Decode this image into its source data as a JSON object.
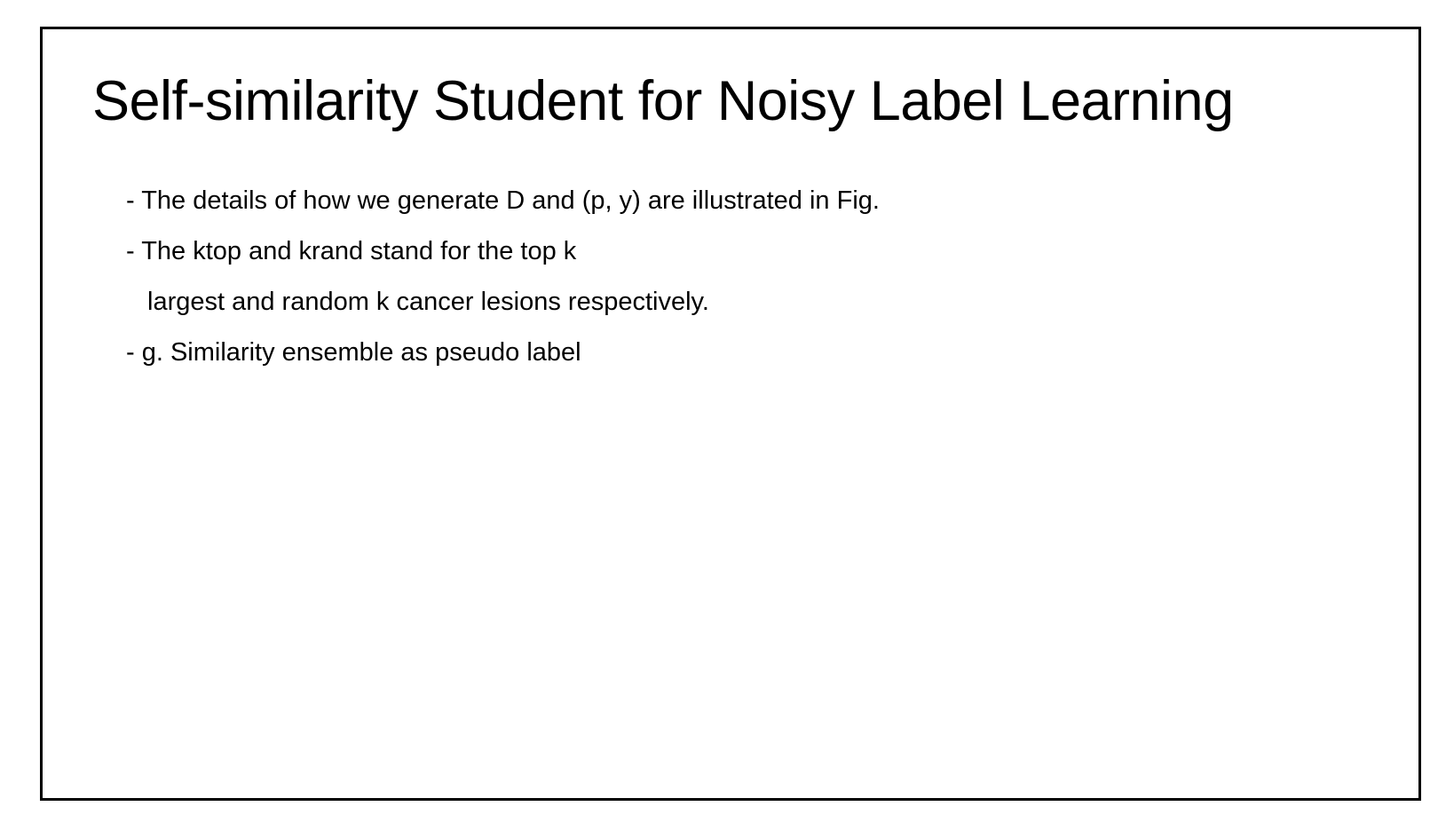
{
  "slide": {
    "title": "Self-similarity Student for Noisy Label Learning",
    "lines": [
      "- The details of how we generate D and (p, y) are illustrated in Fig.",
      "- The ktop and krand stand for the top k",
      "largest and random k cancer lesions respectively.",
      "- g. Similarity ensemble as pseudo label"
    ]
  }
}
